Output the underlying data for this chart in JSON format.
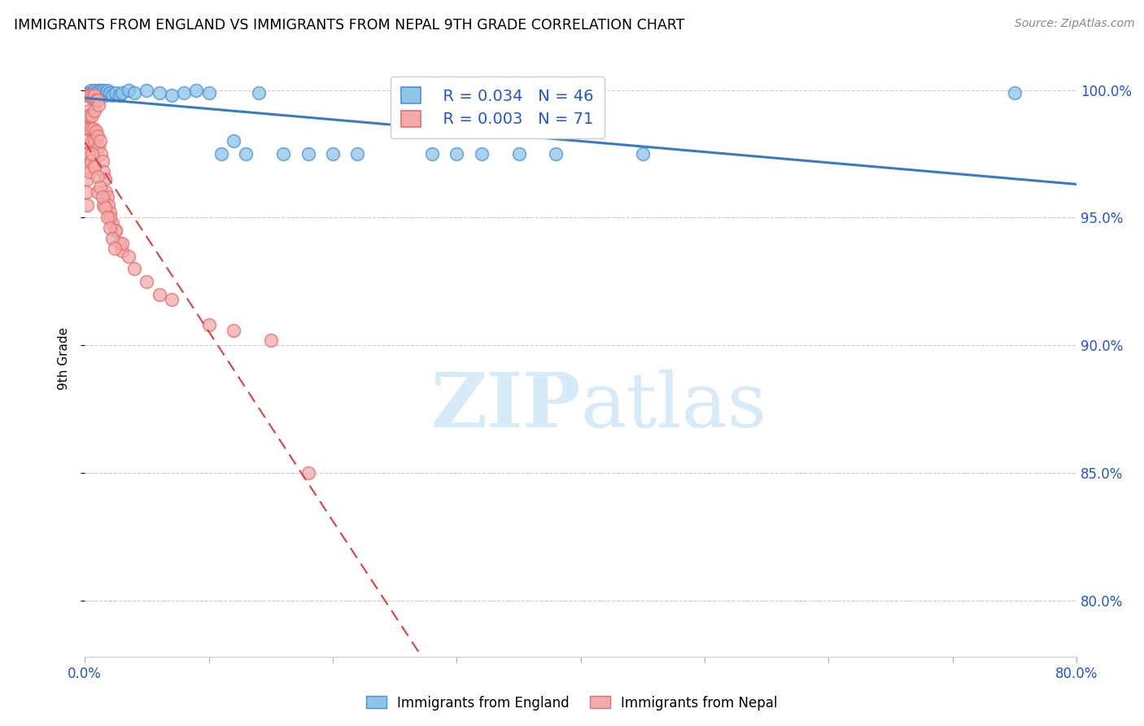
{
  "title": "IMMIGRANTS FROM ENGLAND VS IMMIGRANTS FROM NEPAL 9TH GRADE CORRELATION CHART",
  "source": "Source: ZipAtlas.com",
  "ylabel": "9th Grade",
  "x_min": 0.0,
  "x_max": 0.8,
  "y_min": 0.778,
  "y_max": 1.012,
  "x_ticks": [
    0.0,
    0.1,
    0.2,
    0.3,
    0.4,
    0.5,
    0.6,
    0.7,
    0.8
  ],
  "y_ticks": [
    0.8,
    0.85,
    0.9,
    0.95,
    1.0
  ],
  "y_tick_labels": [
    "80.0%",
    "85.0%",
    "90.0%",
    "95.0%",
    "100.0%"
  ],
  "legend1_R": "0.034",
  "legend1_N": "46",
  "legend2_R": "0.003",
  "legend2_N": "71",
  "color_england": "#8ec4e8",
  "color_england_edge": "#4a90d9",
  "color_nepal": "#f4aaaa",
  "color_nepal_edge": "#e07070",
  "color_england_line": "#3a7abf",
  "color_nepal_line": "#d94040",
  "watermark_color": "#d6eaf8",
  "england_x": [
    0.001,
    0.002,
    0.003,
    0.004,
    0.005,
    0.006,
    0.007,
    0.008,
    0.009,
    0.01,
    0.011,
    0.012,
    0.013,
    0.014,
    0.015,
    0.016,
    0.017,
    0.018,
    0.02,
    0.022,
    0.025,
    0.028,
    0.03,
    0.035,
    0.04,
    0.05,
    0.06,
    0.07,
    0.08,
    0.09,
    0.1,
    0.11,
    0.12,
    0.13,
    0.14,
    0.16,
    0.18,
    0.2,
    0.22,
    0.28,
    0.3,
    0.32,
    0.35,
    0.38,
    0.45,
    0.75
  ],
  "england_y": [
    0.998,
    0.999,
    0.998,
    0.999,
    1.0,
    0.999,
    0.998,
    1.0,
    0.999,
    0.999,
    1.0,
    0.999,
    1.0,
    0.999,
    1.0,
    0.999,
    0.998,
    1.0,
    0.999,
    0.998,
    0.999,
    0.998,
    0.999,
    1.0,
    0.999,
    1.0,
    0.999,
    0.998,
    0.999,
    1.0,
    0.999,
    0.975,
    0.98,
    0.975,
    0.999,
    0.975,
    0.975,
    0.975,
    0.975,
    0.975,
    0.975,
    0.975,
    0.975,
    0.975,
    0.975,
    0.999
  ],
  "nepal_x": [
    0.001,
    0.001,
    0.001,
    0.001,
    0.001,
    0.002,
    0.002,
    0.002,
    0.002,
    0.002,
    0.003,
    0.003,
    0.003,
    0.003,
    0.004,
    0.004,
    0.004,
    0.005,
    0.005,
    0.005,
    0.006,
    0.006,
    0.006,
    0.007,
    0.007,
    0.008,
    0.008,
    0.008,
    0.009,
    0.009,
    0.01,
    0.01,
    0.011,
    0.011,
    0.012,
    0.013,
    0.014,
    0.015,
    0.016,
    0.017,
    0.018,
    0.019,
    0.02,
    0.022,
    0.025,
    0.028,
    0.03,
    0.035,
    0.04,
    0.05,
    0.06,
    0.07,
    0.01,
    0.015,
    0.02,
    0.025,
    0.03,
    0.006,
    0.008,
    0.01,
    0.012,
    0.014,
    0.016,
    0.018,
    0.02,
    0.022,
    0.024,
    0.1,
    0.12,
    0.15,
    0.18
  ],
  "nepal_y": [
    0.998,
    0.99,
    0.98,
    0.97,
    0.96,
    0.998,
    0.99,
    0.975,
    0.965,
    0.955,
    0.998,
    0.992,
    0.985,
    0.975,
    0.998,
    0.99,
    0.968,
    0.997,
    0.985,
    0.972,
    0.998,
    0.99,
    0.98,
    0.997,
    0.985,
    0.998,
    0.992,
    0.98,
    0.996,
    0.984,
    0.996,
    0.982,
    0.994,
    0.978,
    0.98,
    0.975,
    0.972,
    0.968,
    0.965,
    0.96,
    0.958,
    0.955,
    0.952,
    0.948,
    0.945,
    0.94,
    0.937,
    0.935,
    0.93,
    0.925,
    0.92,
    0.918,
    0.96,
    0.955,
    0.95,
    0.945,
    0.94,
    0.975,
    0.97,
    0.966,
    0.962,
    0.958,
    0.954,
    0.95,
    0.946,
    0.942,
    0.938,
    0.908,
    0.906,
    0.902,
    0.85
  ]
}
